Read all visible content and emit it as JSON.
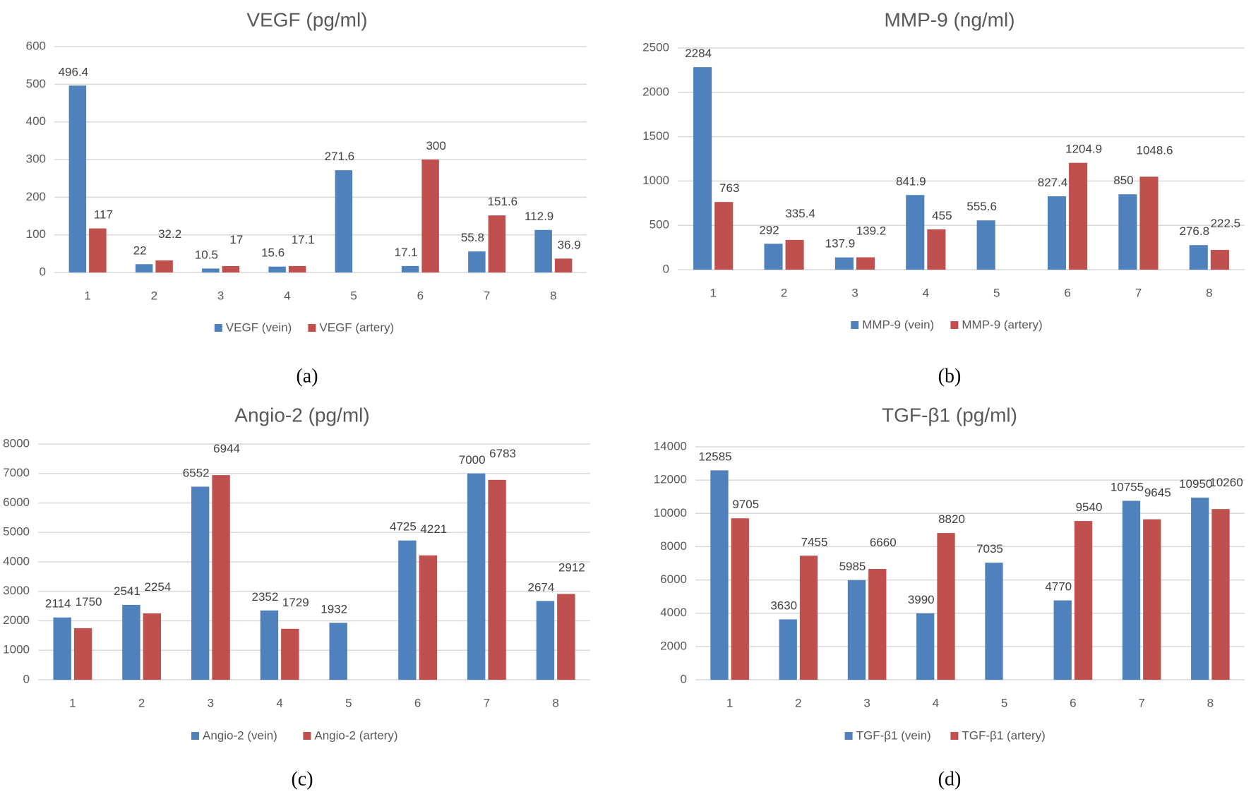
{
  "colors": {
    "vein": "#4f81bd",
    "artery": "#c0504d"
  },
  "chart_data": [
    {
      "type": "bar",
      "panel_label": "(a)",
      "title": "VEGF (pg/ml)",
      "categories": [
        "1",
        "2",
        "3",
        "4",
        "5",
        "6",
        "7",
        "8"
      ],
      "ylim": [
        0,
        600
      ],
      "yticks": [
        0,
        100,
        200,
        300,
        400,
        500,
        600
      ],
      "grid": true,
      "legend_position": "bottom",
      "series": [
        {
          "name": "VEGF (vein)",
          "values": [
            496.4,
            22,
            10.5,
            15.6,
            271.6,
            17.1,
            55.8,
            112.9
          ]
        },
        {
          "name": "VEGF (artery)",
          "values": [
            117,
            32.2,
            17,
            17.1,
            null,
            300,
            151.6,
            36.9
          ]
        }
      ]
    },
    {
      "type": "bar",
      "panel_label": "(b)",
      "title": "MMP-9 (ng/ml)",
      "categories": [
        "1",
        "2",
        "3",
        "4",
        "5",
        "6",
        "7",
        "8"
      ],
      "ylim": [
        0,
        2500
      ],
      "yticks": [
        0,
        500,
        1000,
        1500,
        2000,
        2500
      ],
      "grid": true,
      "legend_position": "bottom",
      "series": [
        {
          "name": "MMP-9 (vein)",
          "values": [
            2284,
            292,
            137.9,
            841.9,
            555.6,
            827.4,
            850,
            276.8
          ]
        },
        {
          "name": "MMP-9 (artery)",
          "values": [
            763,
            335.4,
            139.2,
            455,
            null,
            1204.9,
            1048.6,
            222.5
          ]
        }
      ]
    },
    {
      "type": "bar",
      "panel_label": "(c)",
      "title": "Angio-2 (pg/ml)",
      "categories": [
        "1",
        "2",
        "3",
        "4",
        "5",
        "6",
        "7",
        "8"
      ],
      "ylim": [
        0,
        8000
      ],
      "yticks": [
        0,
        1000,
        2000,
        3000,
        4000,
        5000,
        6000,
        7000,
        8000
      ],
      "grid": true,
      "legend_position": "bottom",
      "series": [
        {
          "name": "Angio-2 (vein)",
          "values": [
            2114,
            2541,
            6552,
            2352,
            1932,
            4725,
            7000,
            2674
          ]
        },
        {
          "name": "Angio-2 (artery)",
          "values": [
            1750,
            2254,
            6944,
            1729,
            null,
            4221,
            6783,
            2912
          ]
        }
      ]
    },
    {
      "type": "bar",
      "panel_label": "(d)",
      "title": "TGF-β1 (pg/ml)",
      "categories": [
        "1",
        "2",
        "3",
        "4",
        "5",
        "6",
        "7",
        "8"
      ],
      "ylim": [
        0,
        14000
      ],
      "yticks": [
        0,
        2000,
        4000,
        6000,
        8000,
        10000,
        12000,
        14000
      ],
      "grid": true,
      "legend_position": "bottom",
      "series": [
        {
          "name": "TGF-β1 (vein)",
          "values": [
            12585,
            3630,
            5985,
            3990,
            7035,
            4770,
            10755,
            10950
          ]
        },
        {
          "name": "TGF-β1 (artery)",
          "values": [
            9705,
            7455,
            6660,
            8820,
            null,
            9540,
            9645,
            10260
          ]
        }
      ]
    }
  ]
}
